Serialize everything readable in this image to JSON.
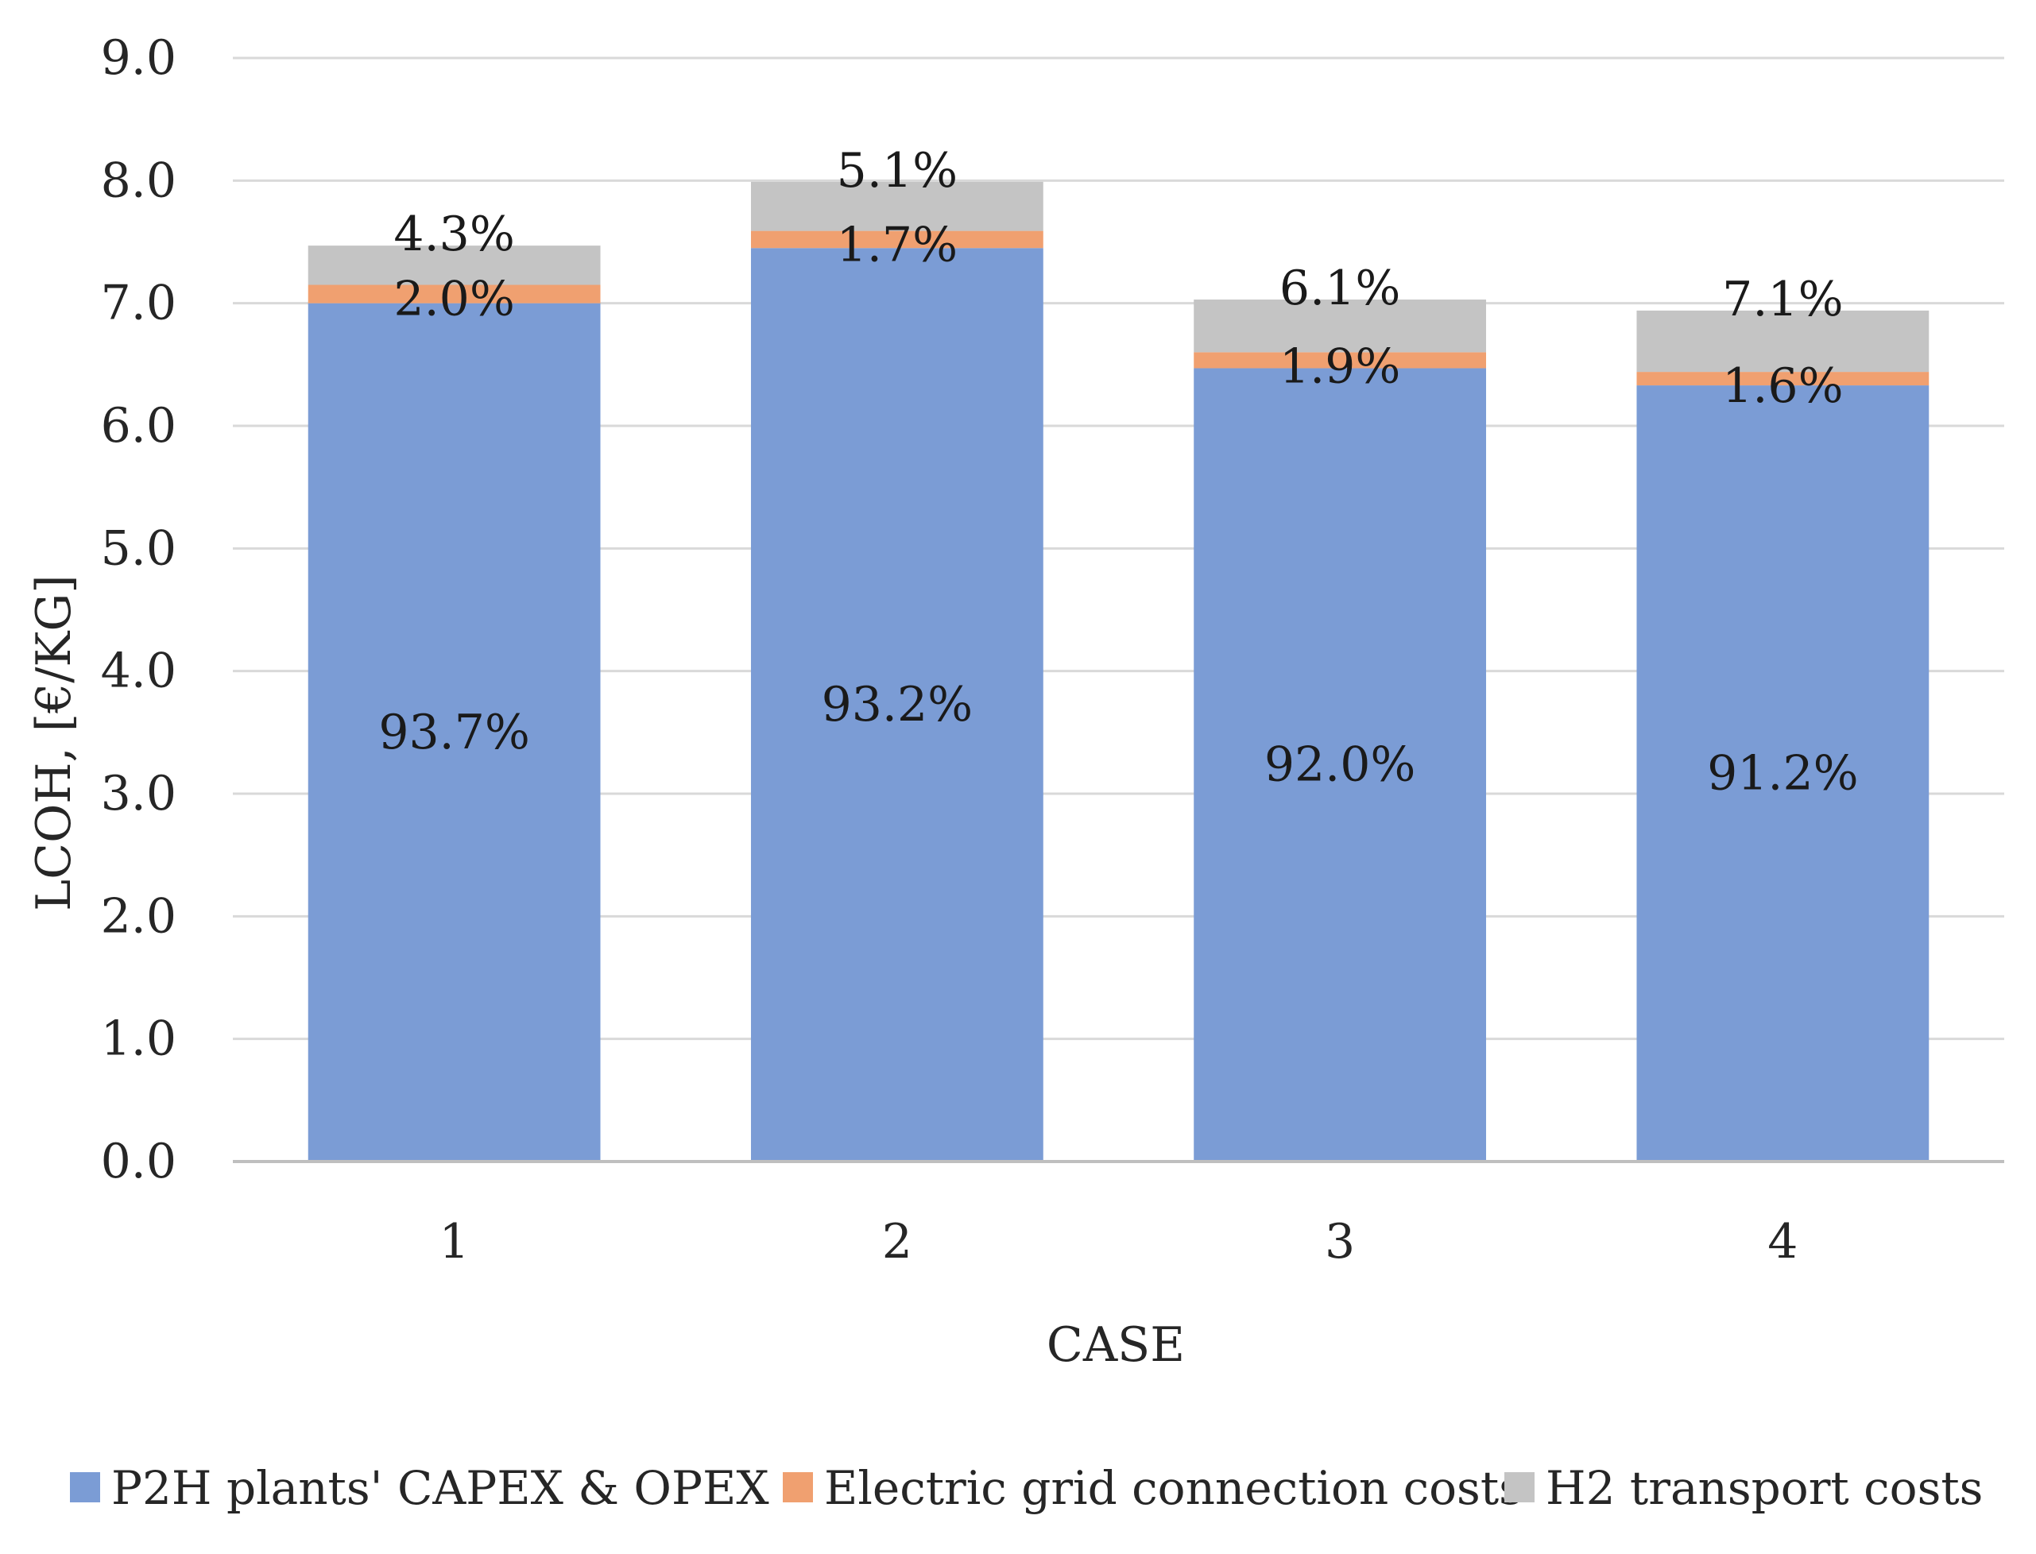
{
  "chart_data": {
    "type": "bar",
    "stacked": true,
    "title": "",
    "xlabel": "CASE",
    "ylabel": "LCOH, [€/KG]",
    "ylim": [
      0,
      9
    ],
    "ytick_step": 1,
    "grid": true,
    "legend_position": "bottom",
    "categories": [
      "1",
      "2",
      "3",
      "4"
    ],
    "totals": [
      7.47,
      7.99,
      7.03,
      6.94
    ],
    "series": [
      {
        "name": "P2H plants' CAPEX & OPEX",
        "color": "#7B9CD5",
        "values": [
          7.0,
          7.45,
          6.47,
          6.33
        ],
        "labels": [
          "93.7%",
          "93.2%",
          "92.0%",
          "91.2%"
        ]
      },
      {
        "name": "Electric grid connection costs",
        "color": "#F0A070",
        "values": [
          0.15,
          0.14,
          0.13,
          0.11
        ],
        "labels": [
          "2.0%",
          "1.7%",
          "1.9%",
          "1.6%"
        ]
      },
      {
        "name": "H2 transport costs",
        "color": "#C4C4C4",
        "values": [
          0.32,
          0.4,
          0.43,
          0.5
        ],
        "labels": [
          "4.3%",
          "5.1%",
          "6.1%",
          "7.1%"
        ]
      }
    ]
  }
}
